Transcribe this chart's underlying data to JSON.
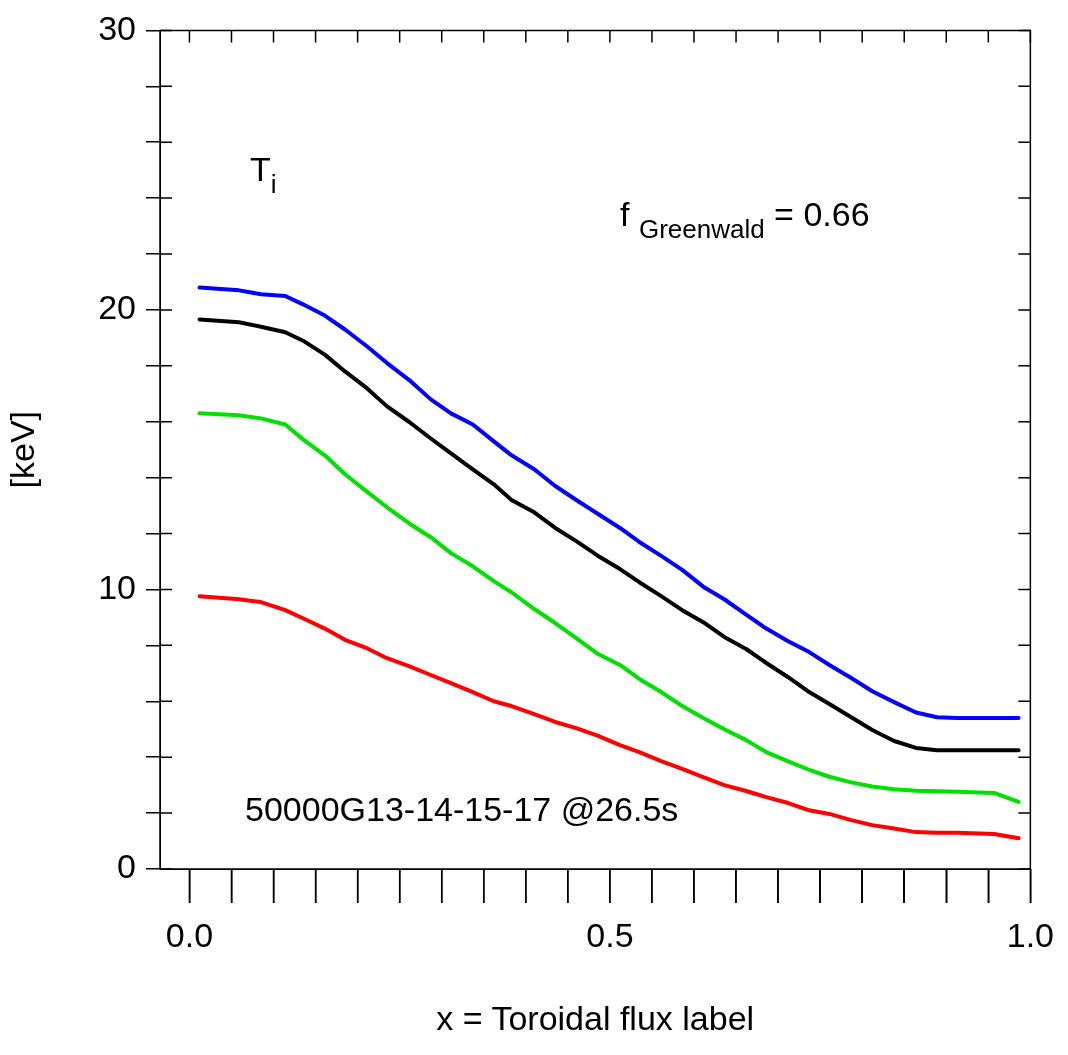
{
  "chart_data": {
    "type": "line",
    "xlabel": "x = Toroidal flux label",
    "ylabel": "[keV]",
    "annotations": [
      "T$_{i}$",
      "f $_{Greenwald}$ = 0.66",
      "50000G13-14-15-17 @26.5s"
    ],
    "x": [
      0.012,
      0.059,
      0.085,
      0.114,
      0.135,
      0.161,
      0.185,
      0.211,
      0.235,
      0.261,
      0.287,
      0.311,
      0.337,
      0.362,
      0.383,
      0.41,
      0.435,
      0.46,
      0.486,
      0.512,
      0.535,
      0.561,
      0.586,
      0.611,
      0.636,
      0.662,
      0.686,
      0.712,
      0.737,
      0.761,
      0.787,
      0.812,
      0.838,
      0.864,
      0.889,
      0.913,
      0.957,
      0.986
    ],
    "series": [
      {
        "color": "#0000ff",
        "values": [
          20.8,
          20.7,
          20.56,
          20.5,
          20.2,
          19.8,
          19.3,
          18.7,
          18.1,
          17.5,
          16.8,
          16.3,
          15.9,
          15.3,
          14.8,
          14.3,
          13.7,
          13.2,
          12.7,
          12.2,
          11.7,
          11.2,
          10.7,
          10.1,
          9.65,
          9.1,
          8.6,
          8.15,
          7.76,
          7.3,
          6.83,
          6.36,
          5.97,
          5.6,
          5.43,
          5.4,
          5.4,
          5.4
        ]
      },
      {
        "color": "#000000",
        "values": [
          19.66,
          19.56,
          19.4,
          19.2,
          18.9,
          18.4,
          17.8,
          17.2,
          16.55,
          16.0,
          15.4,
          14.87,
          14.3,
          13.76,
          13.2,
          12.76,
          12.2,
          11.73,
          11.2,
          10.73,
          10.26,
          9.76,
          9.26,
          8.83,
          8.3,
          7.87,
          7.37,
          6.86,
          6.33,
          5.9,
          5.43,
          4.97,
          4.58,
          4.33,
          4.25,
          4.25,
          4.25,
          4.25
        ]
      },
      {
        "color": "#00e000",
        "values": [
          16.3,
          16.23,
          16.12,
          15.9,
          15.37,
          14.8,
          14.12,
          13.5,
          12.94,
          12.37,
          11.87,
          11.3,
          10.83,
          10.3,
          9.9,
          9.3,
          8.8,
          8.26,
          7.69,
          7.3,
          6.8,
          6.33,
          5.83,
          5.4,
          5.0,
          4.61,
          4.18,
          3.85,
          3.55,
          3.3,
          3.1,
          2.95,
          2.85,
          2.8,
          2.78,
          2.76,
          2.72,
          2.4
        ]
      },
      {
        "color": "#ff0000",
        "values": [
          9.76,
          9.65,
          9.55,
          9.26,
          8.97,
          8.6,
          8.2,
          7.9,
          7.54,
          7.26,
          6.94,
          6.65,
          6.33,
          6.0,
          5.83,
          5.54,
          5.26,
          5.04,
          4.76,
          4.43,
          4.18,
          3.86,
          3.58,
          3.29,
          3.0,
          2.79,
          2.57,
          2.36,
          2.1,
          1.97,
          1.75,
          1.57,
          1.45,
          1.32,
          1.3,
          1.3,
          1.25,
          1.1
        ]
      }
    ],
    "xlim": [
      -0.035,
      1.0
    ],
    "xticks": [
      {
        "value": 0,
        "label": "0.0"
      },
      {
        "value": 0.05,
        "label": null
      },
      {
        "value": 0.1,
        "label": null
      },
      {
        "value": 0.15,
        "label": null
      },
      {
        "value": 0.2,
        "label": null
      },
      {
        "value": 0.25,
        "label": null
      },
      {
        "value": 0.3,
        "label": null
      },
      {
        "value": 0.35,
        "label": null
      },
      {
        "value": 0.4,
        "label": null
      },
      {
        "value": 0.45,
        "label": null
      },
      {
        "value": 0.5,
        "label": "0.5"
      },
      {
        "value": 0.55,
        "label": null
      },
      {
        "value": 0.6,
        "label": null
      },
      {
        "value": 0.65,
        "label": null
      },
      {
        "value": 0.7,
        "label": null
      },
      {
        "value": 0.75,
        "label": null
      },
      {
        "value": 0.8,
        "label": null
      },
      {
        "value": 0.85,
        "label": null
      },
      {
        "value": 0.9,
        "label": null
      },
      {
        "value": 0.95,
        "label": null
      },
      {
        "value": 1,
        "label": "1.0"
      }
    ],
    "ylim": [
      0,
      30
    ],
    "yticks": [
      0,
      {
        "value": 2,
        "label": null
      },
      {
        "value": 4,
        "label": null
      },
      {
        "value": 6,
        "label": null
      },
      {
        "value": 8,
        "label": null
      },
      10,
      {
        "value": 12,
        "label": null
      },
      {
        "value": 14,
        "label": null
      },
      {
        "value": 16,
        "label": null
      },
      {
        "value": 18,
        "label": null
      },
      20,
      {
        "value": 22,
        "label": null
      },
      {
        "value": 24,
        "label": null
      },
      {
        "value": 26,
        "label": null
      },
      {
        "value": 28,
        "label": null
      },
      30
    ],
    "grid": false,
    "legend": false,
    "marker": "none",
    "line_style": "solid"
  }
}
